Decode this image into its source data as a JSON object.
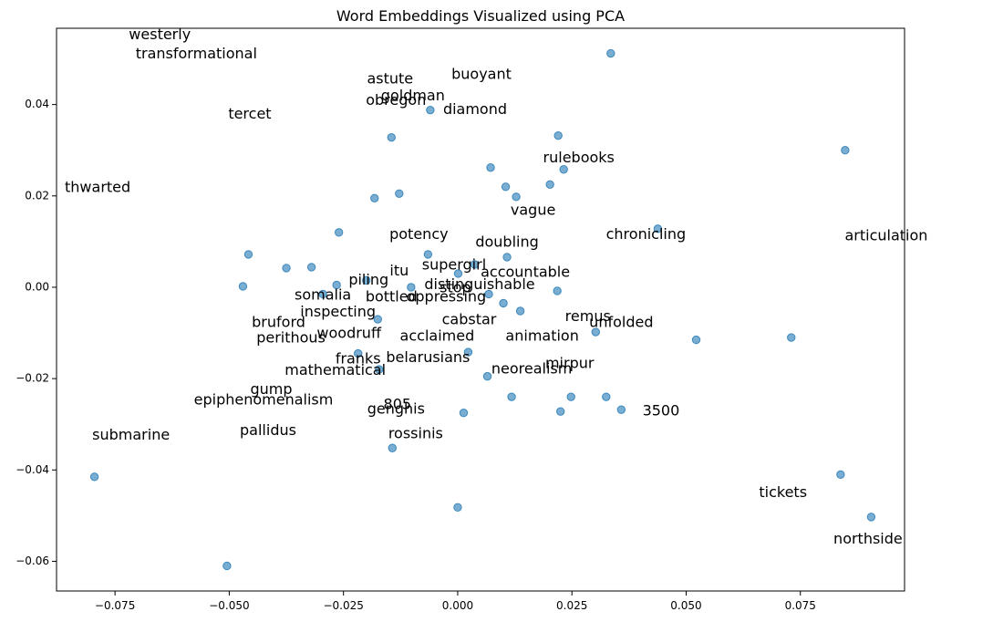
{
  "chart_data": {
    "type": "scatter",
    "title": "Word Embeddings Visualized using PCA",
    "xlabel": "",
    "ylabel": "",
    "xlim": [
      -0.0878,
      0.0978
    ],
    "ylim": [
      -0.0665,
      0.0567
    ],
    "grid": false,
    "color": "#1f77b4",
    "x_ticks": [
      -0.075,
      -0.05,
      -0.025,
      0.0,
      0.025,
      0.05,
      0.075
    ],
    "x_tick_labels": [
      "−0.075",
      "−0.050",
      "−0.025",
      "0.000",
      "0.025",
      "0.050",
      "0.075"
    ],
    "y_ticks": [
      -0.06,
      -0.04,
      -0.02,
      0.0,
      0.02,
      0.04
    ],
    "y_tick_labels": [
      "−0.06",
      "−0.04",
      "−0.02",
      "0.00",
      "0.02",
      "0.04"
    ],
    "points": [
      {
        "x": -0.0795,
        "y": -0.0415
      },
      {
        "x": -0.0505,
        "y": -0.061
      },
      {
        "x": -0.047,
        "y": 0.0002
      },
      {
        "x": -0.0458,
        "y": 0.0072
      },
      {
        "x": -0.0375,
        "y": 0.0042
      },
      {
        "x": -0.032,
        "y": 0.0044
      },
      {
        "x": -0.0295,
        "y": -0.0015
      },
      {
        "x": -0.026,
        "y": 0.012
      },
      {
        "x": -0.0265,
        "y": 0.0005
      },
      {
        "x": -0.0218,
        "y": -0.0145
      },
      {
        "x": -0.02,
        "y": 0.0015
      },
      {
        "x": -0.0182,
        "y": 0.0195
      },
      {
        "x": -0.0175,
        "y": -0.007
      },
      {
        "x": -0.0172,
        "y": -0.018
      },
      {
        "x": -0.0145,
        "y": 0.0328
      },
      {
        "x": -0.0143,
        "y": -0.0352
      },
      {
        "x": -0.0128,
        "y": 0.0205
      },
      {
        "x": -0.0102,
        "y": 0.0
      },
      {
        "x": -0.0065,
        "y": 0.0072
      },
      {
        "x": -0.006,
        "y": 0.0388
      },
      {
        "x": 0.0001,
        "y": 0.003
      },
      {
        "x": 0.0,
        "y": -0.0482
      },
      {
        "x": 0.0013,
        "y": -0.0275
      },
      {
        "x": 0.0023,
        "y": -0.0142
      },
      {
        "x": 0.0037,
        "y": 0.005
      },
      {
        "x": 0.0065,
        "y": -0.0195
      },
      {
        "x": 0.0068,
        "y": -0.0015
      },
      {
        "x": 0.0072,
        "y": 0.0262
      },
      {
        "x": 0.01,
        "y": -0.0035
      },
      {
        "x": 0.0105,
        "y": 0.022
      },
      {
        "x": 0.0108,
        "y": 0.0066
      },
      {
        "x": 0.0118,
        "y": -0.024
      },
      {
        "x": 0.0128,
        "y": 0.0198
      },
      {
        "x": 0.0137,
        "y": -0.0052
      },
      {
        "x": 0.0202,
        "y": 0.0225
      },
      {
        "x": 0.0218,
        "y": -0.0008
      },
      {
        "x": 0.022,
        "y": 0.0332
      },
      {
        "x": 0.0225,
        "y": -0.0272
      },
      {
        "x": 0.0232,
        "y": 0.0258
      },
      {
        "x": 0.0248,
        "y": -0.024
      },
      {
        "x": 0.0302,
        "y": -0.0098
      },
      {
        "x": 0.0325,
        "y": -0.024
      },
      {
        "x": 0.0335,
        "y": 0.0512
      },
      {
        "x": 0.0358,
        "y": -0.0268
      },
      {
        "x": 0.0438,
        "y": 0.0128
      },
      {
        "x": 0.0522,
        "y": -0.0115
      },
      {
        "x": 0.073,
        "y": -0.011
      },
      {
        "x": 0.0838,
        "y": -0.041
      },
      {
        "x": 0.0848,
        "y": 0.03
      },
      {
        "x": 0.0905,
        "y": -0.0503
      }
    ],
    "labels": [
      {
        "text": "westerly",
        "x": -0.0652,
        "y": 0.0552
      },
      {
        "text": "transformational",
        "x": -0.0572,
        "y": 0.051
      },
      {
        "text": "astute",
        "x": -0.0148,
        "y": 0.0455
      },
      {
        "text": "buoyant",
        "x": 0.0052,
        "y": 0.0465
      },
      {
        "text": "goldman",
        "x": -0.0098,
        "y": 0.0418
      },
      {
        "text": "obregon",
        "x": -0.0135,
        "y": 0.0408
      },
      {
        "text": "tercet",
        "x": -0.0455,
        "y": 0.0378
      },
      {
        "text": "diamond",
        "x": 0.0038,
        "y": 0.0388
      },
      {
        "text": "rulebooks",
        "x": 0.0265,
        "y": 0.0282
      },
      {
        "text": "thwarted",
        "x": -0.0788,
        "y": 0.0218
      },
      {
        "text": "vague",
        "x": 0.0165,
        "y": 0.0168
      },
      {
        "text": "chronicling",
        "x": 0.0412,
        "y": 0.0115
      },
      {
        "text": "articulation",
        "x": 0.0938,
        "y": 0.0112
      },
      {
        "text": "potency",
        "x": -0.0085,
        "y": 0.0115
      },
      {
        "text": "doubling",
        "x": 0.0108,
        "y": 0.0098
      },
      {
        "text": "supergirl",
        "x": -0.0008,
        "y": 0.0048
      },
      {
        "text": "itu",
        "x": -0.0128,
        "y": 0.0035
      },
      {
        "text": "accountable",
        "x": 0.0148,
        "y": 0.0032
      },
      {
        "text": "piling",
        "x": -0.0195,
        "y": 0.0015
      },
      {
        "text": "distinguishable",
        "x": 0.0048,
        "y": 0.0005
      },
      {
        "text": "stop",
        "x": -0.0005,
        "y": -0.0002
      },
      {
        "text": "somalia",
        "x": -0.0295,
        "y": -0.0018
      },
      {
        "text": "bottled",
        "x": -0.0145,
        "y": -0.0022
      },
      {
        "text": "oppressing",
        "x": -0.0025,
        "y": -0.0022
      },
      {
        "text": "inspecting",
        "x": -0.0262,
        "y": -0.0055
      },
      {
        "text": "cabstar",
        "x": 0.0025,
        "y": -0.0072
      },
      {
        "text": "remus",
        "x": 0.0285,
        "y": -0.0065
      },
      {
        "text": "bruford",
        "x": -0.0392,
        "y": -0.0078
      },
      {
        "text": "unfolded",
        "x": 0.0358,
        "y": -0.0078
      },
      {
        "text": "woodruff",
        "x": -0.0238,
        "y": -0.0102
      },
      {
        "text": "perithous",
        "x": -0.0365,
        "y": -0.0112
      },
      {
        "text": "acclaimed",
        "x": -0.0045,
        "y": -0.0108
      },
      {
        "text": "animation",
        "x": 0.0185,
        "y": -0.0108
      },
      {
        "text": "franks",
        "x": -0.0218,
        "y": -0.0158
      },
      {
        "text": "belarusians",
        "x": -0.0065,
        "y": -0.0155
      },
      {
        "text": "mirpur",
        "x": 0.0245,
        "y": -0.0168
      },
      {
        "text": "neorealism",
        "x": 0.0162,
        "y": -0.018
      },
      {
        "text": "mathematical",
        "x": -0.0268,
        "y": -0.0183
      },
      {
        "text": "gump",
        "x": -0.0408,
        "y": -0.0225
      },
      {
        "text": "epiphenomenalism",
        "x": -0.0425,
        "y": -0.0248
      },
      {
        "text": "805",
        "x": -0.0132,
        "y": -0.0258
      },
      {
        "text": "genghis",
        "x": -0.0135,
        "y": -0.0268
      },
      {
        "text": "3500",
        "x": 0.0445,
        "y": -0.0272
      },
      {
        "text": "pallidus",
        "x": -0.0415,
        "y": -0.0315
      },
      {
        "text": "rossinis",
        "x": -0.0092,
        "y": -0.0322
      },
      {
        "text": "submarine",
        "x": -0.0715,
        "y": -0.0325
      },
      {
        "text": "tickets",
        "x": 0.0712,
        "y": -0.045
      },
      {
        "text": "northside",
        "x": 0.0898,
        "y": -0.0552
      }
    ]
  }
}
